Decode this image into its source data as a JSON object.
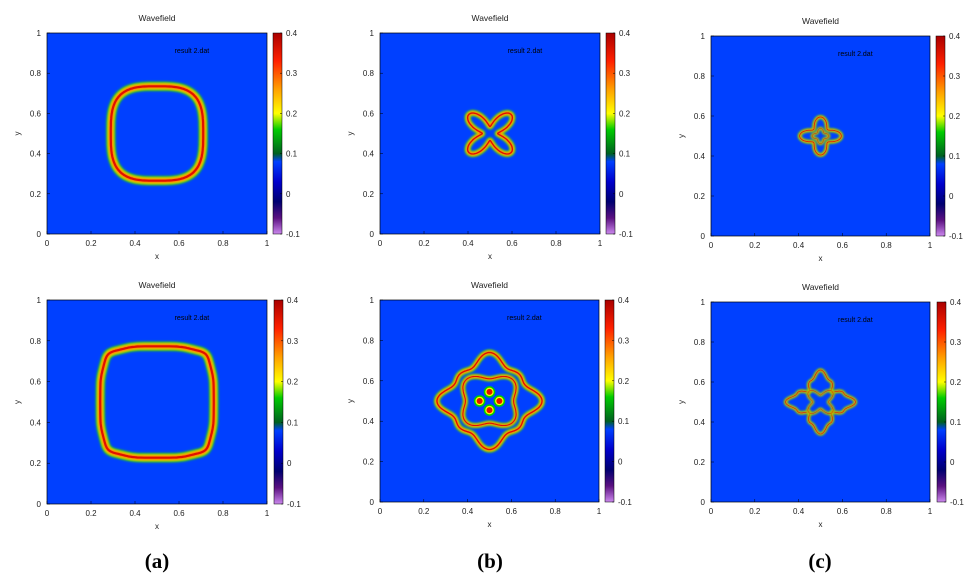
{
  "colorbar": {
    "ticks": [
      "0.4",
      "0.3",
      "0.2",
      "0.1",
      "0",
      "-0.1"
    ],
    "min": -0.1,
    "max": 0.4,
    "colors": [
      "#cc88ee",
      "#3a0060",
      "#000080",
      "#0000cc",
      "#0040ff",
      "#008000",
      "#00cc00",
      "#ffff00",
      "#ffa500",
      "#ff3000",
      "#aa0000"
    ]
  },
  "panel_labels": [
    "(a)",
    "(b)",
    "(c)"
  ],
  "chart_data": [
    {
      "type": "heatmap",
      "title": "Wavefield",
      "xlabel": "x",
      "ylabel": "y",
      "xlim": [
        0,
        1
      ],
      "ylim": [
        0,
        1
      ],
      "legend": "result 2.dat",
      "x_ticks": [
        "0",
        "0.2",
        "0.4",
        "0.6",
        "0.8",
        "1"
      ],
      "y_ticks": [
        "0",
        "0.2",
        "0.4",
        "0.6",
        "0.8",
        "1"
      ],
      "pattern": "rounded-square-ring",
      "extent": [
        0.27,
        0.73,
        0.25,
        0.75
      ]
    },
    {
      "type": "heatmap",
      "title": "Wavefield",
      "xlabel": "x",
      "ylabel": "y",
      "xlim": [
        0,
        1
      ],
      "ylim": [
        0,
        1
      ],
      "legend": "result 2.dat",
      "x_ticks": [
        "0",
        "0.2",
        "0.4",
        "0.6",
        "0.8",
        "1"
      ],
      "y_ticks": [
        "0",
        "0.2",
        "0.4",
        "0.6",
        "0.8",
        "1"
      ],
      "pattern": "four-lobed-ring",
      "extent": [
        0.37,
        0.63,
        0.37,
        0.63
      ]
    },
    {
      "type": "heatmap",
      "title": "Wavefield",
      "xlabel": "x",
      "ylabel": "y",
      "xlim": [
        0,
        1
      ],
      "ylim": [
        0,
        1
      ],
      "legend": "result 2.dat",
      "x_ticks": [
        "0",
        "0.2",
        "0.4",
        "0.6",
        "0.8",
        "1"
      ],
      "y_ticks": [
        "0",
        "0.2",
        "0.4",
        "0.6",
        "0.8",
        "1"
      ],
      "pattern": "star-ring",
      "extent": [
        0.4,
        0.6,
        0.4,
        0.6
      ]
    },
    {
      "type": "heatmap",
      "title": "Wavefield",
      "xlabel": "x",
      "ylabel": "y",
      "xlim": [
        0,
        1
      ],
      "ylim": [
        0,
        1
      ],
      "legend": "result 2.dat",
      "x_ticks": [
        "0",
        "0.2",
        "0.4",
        "0.6",
        "0.8",
        "1"
      ],
      "y_ticks": [
        "0",
        "0.2",
        "0.4",
        "0.6",
        "0.8",
        "1"
      ],
      "pattern": "wavy-square-ring",
      "extent": [
        0.22,
        0.78,
        0.2,
        0.8
      ]
    },
    {
      "type": "heatmap",
      "title": "Wavefield",
      "xlabel": "x",
      "ylabel": "y",
      "xlim": [
        0,
        1
      ],
      "ylim": [
        0,
        1
      ],
      "legend": "result 2.dat",
      "x_ticks": [
        "0",
        "0.2",
        "0.4",
        "0.6",
        "0.8",
        "1"
      ],
      "y_ticks": [
        "0",
        "0.2",
        "0.4",
        "0.6",
        "0.8",
        "1"
      ],
      "pattern": "flower-rings",
      "extent": [
        0.27,
        0.73,
        0.27,
        0.73
      ]
    },
    {
      "type": "heatmap",
      "title": "Wavefield",
      "xlabel": "x",
      "ylabel": "y",
      "xlim": [
        0,
        1
      ],
      "ylim": [
        0,
        1
      ],
      "legend": "result 2.dat",
      "x_ticks": [
        "0",
        "0.2",
        "0.4",
        "0.6",
        "0.8",
        "1"
      ],
      "y_ticks": [
        "0",
        "0.2",
        "0.4",
        "0.6",
        "0.8",
        "1"
      ],
      "pattern": "cross-star-ring",
      "extent": [
        0.35,
        0.65,
        0.35,
        0.65
      ]
    }
  ]
}
